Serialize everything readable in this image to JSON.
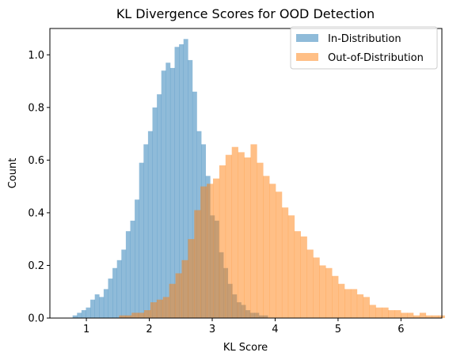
{
  "chart_data": {
    "type": "bar",
    "subtype": "overlapping-histogram",
    "title": "KL Divergence Scores for OOD Detection",
    "xlabel": "KL Score",
    "ylabel": "Count",
    "xlim": [
      0.42,
      6.65
    ],
    "ylim": [
      0,
      1.1
    ],
    "xticks": [
      1,
      2,
      3,
      4,
      5,
      6
    ],
    "yticks": [
      0.0,
      0.2,
      0.4,
      0.6,
      0.8,
      1.0
    ],
    "xtick_labels": [
      "1",
      "2",
      "3",
      "4",
      "5",
      "6"
    ],
    "ytick_labels": [
      "0.0",
      "0.2",
      "0.4",
      "0.6",
      "0.8",
      "1.0"
    ],
    "legend_position": "top-right",
    "grid": false,
    "series": [
      {
        "name": "In-Distribution",
        "color": "#1f77b4",
        "alpha": 0.5,
        "bin_start": 0.64,
        "bin_width": 0.0705,
        "values": [
          0.0,
          0.0,
          0.01,
          0.02,
          0.03,
          0.04,
          0.07,
          0.09,
          0.08,
          0.11,
          0.15,
          0.19,
          0.22,
          0.26,
          0.33,
          0.37,
          0.45,
          0.59,
          0.66,
          0.71,
          0.8,
          0.85,
          0.94,
          0.97,
          0.95,
          1.03,
          1.04,
          1.06,
          0.98,
          0.86,
          0.71,
          0.66,
          0.54,
          0.39,
          0.37,
          0.25,
          0.19,
          0.13,
          0.09,
          0.06,
          0.05,
          0.03,
          0.02,
          0.02,
          0.01,
          0.01,
          0.0
        ]
      },
      {
        "name": "Out-of-Distribution",
        "color": "#ff7f0e",
        "alpha": 0.5,
        "bin_start": 1.52,
        "bin_width": 0.0995,
        "values": [
          0.01,
          0.01,
          0.02,
          0.02,
          0.03,
          0.06,
          0.07,
          0.08,
          0.13,
          0.17,
          0.22,
          0.3,
          0.41,
          0.5,
          0.51,
          0.53,
          0.58,
          0.62,
          0.65,
          0.63,
          0.61,
          0.66,
          0.59,
          0.54,
          0.51,
          0.48,
          0.42,
          0.39,
          0.33,
          0.31,
          0.26,
          0.23,
          0.2,
          0.19,
          0.16,
          0.13,
          0.11,
          0.11,
          0.09,
          0.08,
          0.05,
          0.04,
          0.04,
          0.03,
          0.03,
          0.02,
          0.02,
          0.01,
          0.02,
          0.01,
          0.01,
          0.01
        ]
      }
    ]
  }
}
